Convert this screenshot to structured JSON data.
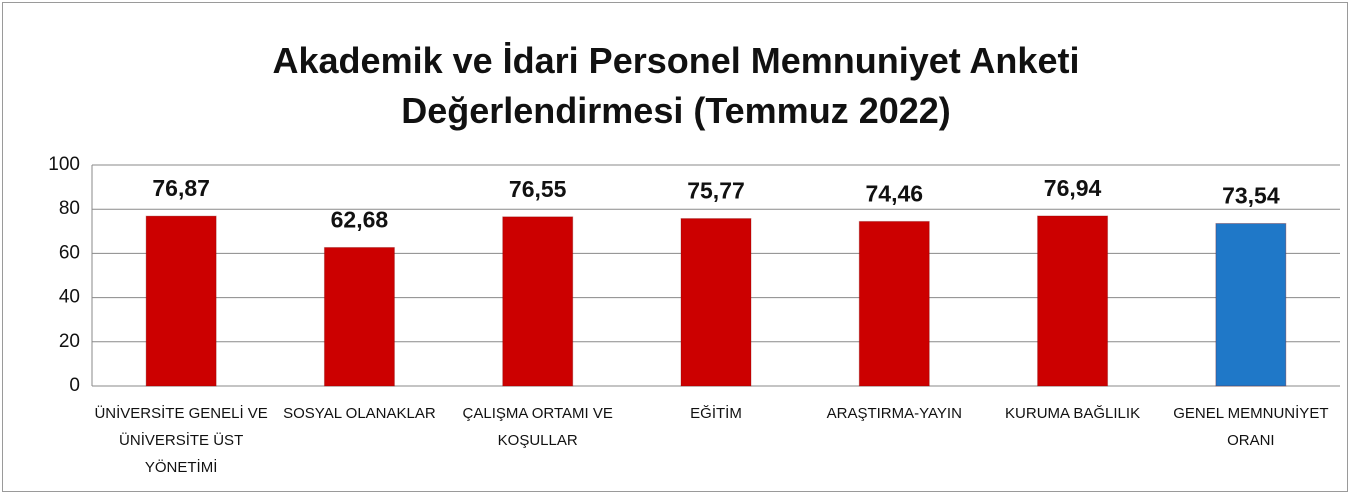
{
  "chart_data": {
    "type": "bar",
    "title": "Akademik ve İdari Personel Memnuniyet Anketi Değerlendirmesi (Temmuz 2022)",
    "categories": [
      "ÜNİVERSİTE GENELİ VE ÜNİVERSİTE ÜST YÖNETİMİ",
      "SOSYAL OLANAKLAR",
      "ÇALIŞMA ORTAMI VE KOŞULLAR",
      "EĞİTİM",
      "ARAŞTIRMA-YAYIN",
      "KURUMA BAĞLILIK",
      "GENEL MEMNUNİYET ORANI"
    ],
    "values": [
      76.87,
      62.68,
      76.55,
      75.77,
      74.46,
      76.94,
      73.54
    ],
    "value_labels": [
      "76,87",
      "62,68",
      "76,55",
      "75,77",
      "74,46",
      "76,94",
      "73,54"
    ],
    "colors": [
      "#cc0000",
      "#cc0000",
      "#cc0000",
      "#cc0000",
      "#cc0000",
      "#cc0000",
      "#1f78c8"
    ],
    "ylim": [
      0,
      100
    ],
    "yticks": [
      0,
      20,
      40,
      60,
      80,
      100
    ],
    "grid": true
  }
}
